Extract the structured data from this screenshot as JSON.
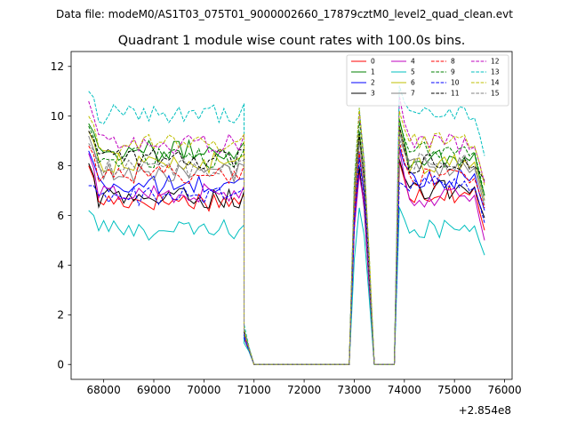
{
  "chart_data": {
    "type": "line",
    "suptitle": "Data file: modeM0/AS1T03_075T01_9000002660_17879cztM0_level2_quad_clean.evt",
    "title": "Quadrant 1 module wise count rates with 100.0s bins.",
    "xlabel": "",
    "ylabel": "",
    "x_offset_label": "+2.854e8",
    "xlim": [
      67350,
      76150
    ],
    "ylim": [
      -0.6,
      12.6
    ],
    "xticks": [
      68000,
      69000,
      70000,
      71000,
      72000,
      73000,
      74000,
      75000,
      76000
    ],
    "xtick_labels": [
      "68000",
      "69000",
      "70000",
      "71000",
      "72000",
      "73000",
      "74000",
      "75000",
      "76000"
    ],
    "yticks": [
      0,
      2,
      4,
      6,
      8,
      10,
      12
    ],
    "ytick_labels": [
      "0",
      "2",
      "4",
      "6",
      "8",
      "10",
      "12"
    ],
    "grid": false,
    "legend_position": "top-right",
    "legend_ncol": 4,
    "bins": {
      "bin_width_s": 100,
      "segments": [
        {
          "start": 67700,
          "end": 70800,
          "state": "on"
        },
        {
          "start": 70800,
          "end": 70900,
          "state": "ramp",
          "level": 0.13
        },
        {
          "start": 71000,
          "end": 72900,
          "state": "off"
        },
        {
          "start": 73000,
          "end": 73300,
          "state": "spike",
          "shape": [
            0.72,
            1.0,
            0.82,
            0.42
          ]
        },
        {
          "start": 73400,
          "end": 73800,
          "state": "off"
        },
        {
          "start": 73900,
          "end": 75600,
          "state": "on"
        }
      ]
    },
    "series": [
      {
        "name": "0",
        "color": "#ff0000",
        "dash": "solid",
        "base": 6.6,
        "base2": 6.9,
        "start": 8.0,
        "end": 5.4
      },
      {
        "name": "1",
        "color": "#008000",
        "dash": "solid",
        "base": 8.6,
        "base2": 8.3,
        "start": 9.7,
        "end": 6.8
      },
      {
        "name": "2",
        "color": "#0000ff",
        "dash": "solid",
        "base": 7.2,
        "base2": 7.5,
        "start": 8.6,
        "end": 6.2
      },
      {
        "name": "3",
        "color": "#000000",
        "dash": "solid",
        "base": 6.7,
        "base2": 7.0,
        "start": 8.1,
        "end": 5.9
      },
      {
        "name": "4",
        "color": "#bf00bf",
        "dash": "solid",
        "base": 6.9,
        "base2": 6.7,
        "start": 8.5,
        "end": 5.0
      },
      {
        "name": "5",
        "color": "#00bfbf",
        "dash": "solid",
        "base": 5.4,
        "base2": 5.5,
        "start": 6.2,
        "end": 4.4
      },
      {
        "name": "6",
        "color": "#bfbf00",
        "dash": "solid",
        "base": 8.1,
        "base2": 8.1,
        "start": 9.4,
        "end": 6.6
      },
      {
        "name": "7",
        "color": "#808080",
        "dash": "solid",
        "base": 7.7,
        "base2": 7.9,
        "start": 9.2,
        "end": 6.4
      },
      {
        "name": "8",
        "color": "#ff0000",
        "dash": "dashed",
        "base": 7.7,
        "base2": 7.5,
        "start": 8.8,
        "end": 6.3
      },
      {
        "name": "9",
        "color": "#008000",
        "dash": "dashed",
        "base": 8.3,
        "base2": 8.6,
        "start": 9.6,
        "end": 6.8
      },
      {
        "name": "10",
        "color": "#0000ff",
        "dash": "dashed",
        "base": 6.8,
        "base2": 7.2,
        "start": 7.2,
        "end": 5.7
      },
      {
        "name": "11",
        "color": "#000000",
        "dash": "dashed",
        "base": 8.3,
        "base2": 8.1,
        "start": 9.4,
        "end": 7.4
      },
      {
        "name": "12",
        "color": "#bf00bf",
        "dash": "dashed",
        "base": 8.9,
        "base2": 8.9,
        "start": 10.6,
        "end": 7.3
      },
      {
        "name": "13",
        "color": "#00bfbf",
        "dash": "dashed",
        "base": 10.1,
        "base2": 10.1,
        "start": 11.0,
        "end": 8.4
      },
      {
        "name": "14",
        "color": "#bfbf00",
        "dash": "dashed",
        "base": 8.9,
        "base2": 9.0,
        "start": 10.0,
        "end": 7.2
      },
      {
        "name": "15",
        "color": "#808080",
        "dash": "dashed",
        "base": 7.9,
        "base2": 8.2,
        "start": 8.9,
        "end": 6.6
      }
    ]
  }
}
